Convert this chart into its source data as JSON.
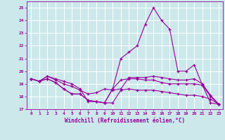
{
  "background_color": "#cce8ea",
  "line_color": "#990099",
  "grid_color": "#ffffff",
  "xlabel": "Windchill (Refroidissement éolien,°C)",
  "xlim": [
    -0.5,
    23.5
  ],
  "ylim": [
    17,
    25.5
  ],
  "yticks": [
    17,
    18,
    19,
    20,
    21,
    22,
    23,
    24,
    25
  ],
  "xticks": [
    0,
    1,
    2,
    3,
    4,
    5,
    6,
    7,
    8,
    9,
    10,
    11,
    12,
    13,
    14,
    15,
    16,
    17,
    18,
    19,
    20,
    21,
    22,
    23
  ],
  "series": [
    [
      19.4,
      19.2,
      19.6,
      19.4,
      19.2,
      19.0,
      18.6,
      17.6,
      17.6,
      17.5,
      18.6,
      21.0,
      21.5,
      22.0,
      23.7,
      25.0,
      24.0,
      23.3,
      20.0,
      20.0,
      20.5,
      18.9,
      17.5,
      17.4
    ],
    [
      19.4,
      19.2,
      19.6,
      19.3,
      19.0,
      18.8,
      18.5,
      18.2,
      18.3,
      18.6,
      18.5,
      18.6,
      19.5,
      19.5,
      19.5,
      19.6,
      19.5,
      19.4,
      19.3,
      19.3,
      19.4,
      19.0,
      18.1,
      17.4
    ],
    [
      19.4,
      19.2,
      19.4,
      19.1,
      18.6,
      18.2,
      18.2,
      17.7,
      17.6,
      17.5,
      18.6,
      19.3,
      19.4,
      19.4,
      19.3,
      19.3,
      19.1,
      19.0,
      19.0,
      19.0,
      19.0,
      18.9,
      18.0,
      17.4
    ],
    [
      19.4,
      19.2,
      19.4,
      19.1,
      18.6,
      18.2,
      18.2,
      17.7,
      17.6,
      17.5,
      17.5,
      18.5,
      18.6,
      18.5,
      18.5,
      18.5,
      18.4,
      18.3,
      18.2,
      18.1,
      18.1,
      18.0,
      17.8,
      17.4
    ]
  ]
}
